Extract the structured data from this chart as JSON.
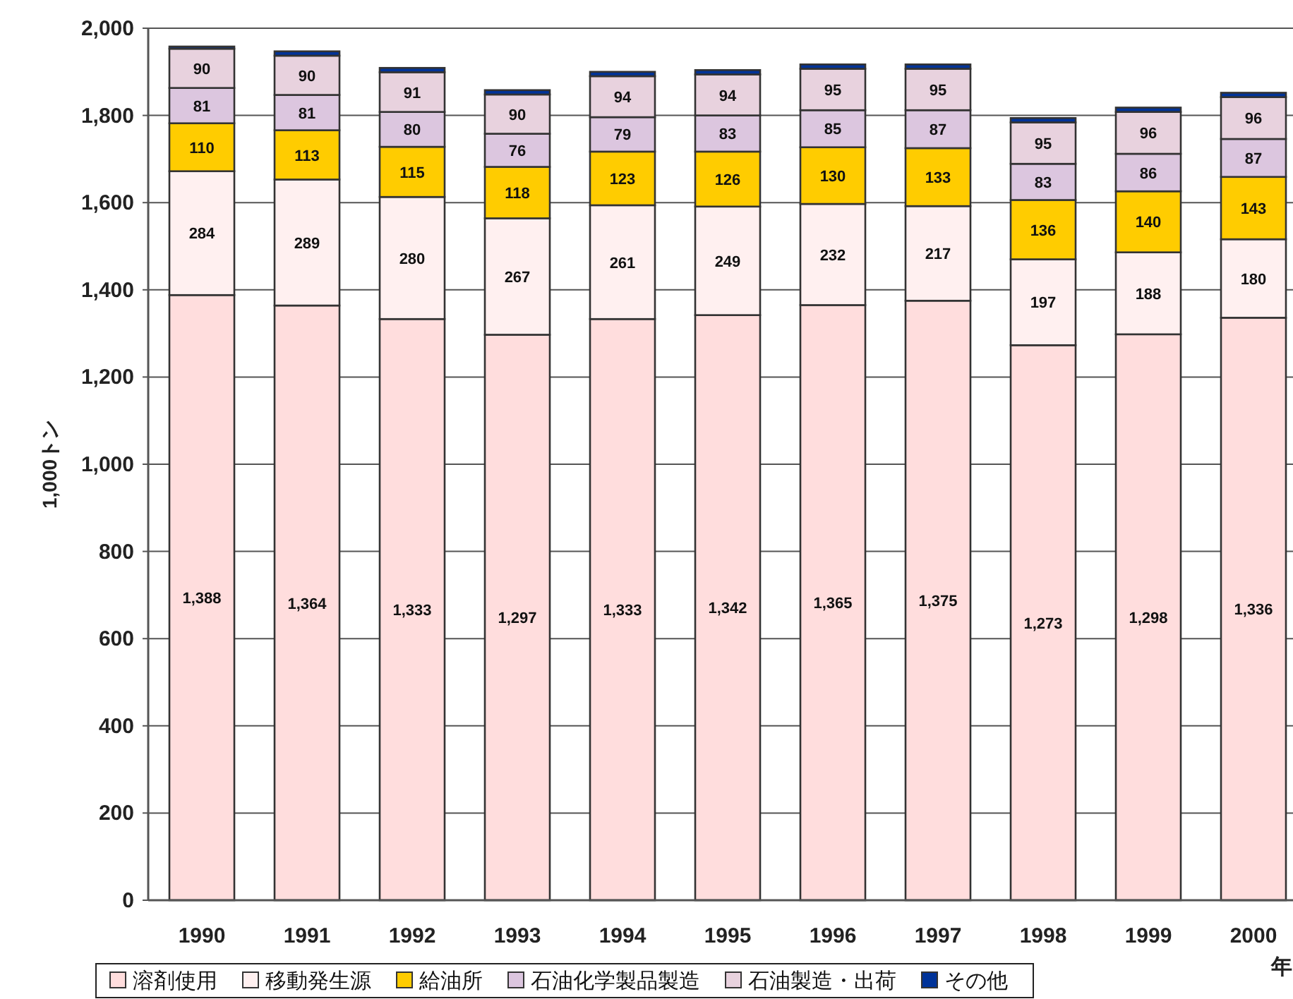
{
  "chart_data": {
    "type": "bar",
    "stacked": true,
    "ylabel": "1,000トン",
    "xlabel": "年",
    "categories": [
      "1990",
      "1991",
      "1992",
      "1993",
      "1994",
      "1995",
      "1996",
      "1997",
      "1998",
      "1999",
      "2000"
    ],
    "ylim": [
      0,
      2000
    ],
    "yticks": [
      {
        "value": 0,
        "label": "0"
      },
      {
        "value": 200,
        "label": "200"
      },
      {
        "value": 400,
        "label": "400"
      },
      {
        "value": 600,
        "label": "600"
      },
      {
        "value": 800,
        "label": "800"
      },
      {
        "value": 1000,
        "label": "1,000"
      },
      {
        "value": 1200,
        "label": "1,200"
      },
      {
        "value": 1400,
        "label": "1,400"
      },
      {
        "value": 1600,
        "label": "1,600"
      },
      {
        "value": 1800,
        "label": "1,800"
      },
      {
        "value": 2000,
        "label": "2,000"
      }
    ],
    "grid": "y",
    "legend": "bottom",
    "series": [
      {
        "name": "溶剤使用",
        "color": "#ffdddd",
        "values": [
          1388,
          1364,
          1333,
          1297,
          1333,
          1342,
          1365,
          1375,
          1273,
          1298,
          1336
        ],
        "value_labels": [
          "1,388",
          "1,364",
          "1,333",
          "1,297",
          "1,333",
          "1,342",
          "1,365",
          "1,375",
          "1,273",
          "1,298",
          "1,336"
        ]
      },
      {
        "name": "移動発生源",
        "color": "#fff0f0",
        "values": [
          284,
          289,
          280,
          267,
          261,
          249,
          232,
          217,
          197,
          188,
          180
        ],
        "value_labels": [
          "284",
          "289",
          "280",
          "267",
          "261",
          "249",
          "232",
          "217",
          "197",
          "188",
          "180"
        ]
      },
      {
        "name": "給油所",
        "color": "#ffcc00",
        "values": [
          110,
          113,
          115,
          118,
          123,
          126,
          130,
          133,
          136,
          140,
          143
        ],
        "value_labels": [
          "110",
          "113",
          "115",
          "118",
          "123",
          "126",
          "130",
          "133",
          "136",
          "140",
          "143"
        ]
      },
      {
        "name": "石油化学製品製造",
        "color": "#dcc6df",
        "values": [
          81,
          81,
          80,
          76,
          79,
          83,
          85,
          87,
          83,
          86,
          87
        ],
        "value_labels": [
          "81",
          "81",
          "80",
          "76",
          "79",
          "83",
          "85",
          "87",
          "83",
          "86",
          "87"
        ]
      },
      {
        "name": "石油製造・出荷",
        "color": "#e8d2de",
        "values": [
          90,
          90,
          91,
          90,
          94,
          94,
          95,
          95,
          95,
          96,
          96
        ],
        "value_labels": [
          "90",
          "90",
          "91",
          "90",
          "94",
          "94",
          "95",
          "95",
          "95",
          "96",
          "96"
        ]
      },
      {
        "name": "その他",
        "color": "#003399",
        "values": [
          5,
          10,
          10,
          10,
          10,
          10,
          10,
          10,
          10,
          10,
          10
        ]
      }
    ]
  }
}
